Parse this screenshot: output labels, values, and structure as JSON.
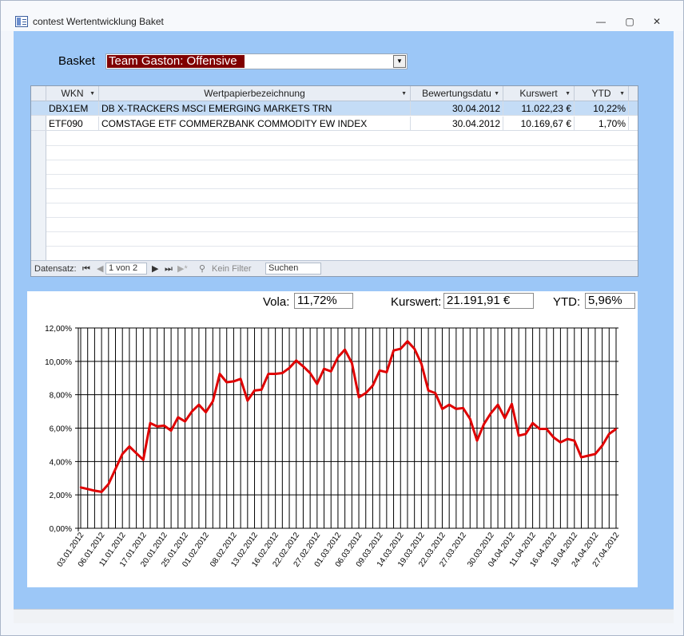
{
  "window": {
    "title": "contest Wertentwicklung Baket",
    "min_glyph": "—",
    "max_glyph": "▢",
    "close_glyph": "✕"
  },
  "basket": {
    "label": "Basket",
    "selected": "Team Gaston: Offensive",
    "dropdown_glyph": "▼"
  },
  "grid": {
    "columns": [
      {
        "label": "WKN"
      },
      {
        "label": "Wertpapierbezeichnung"
      },
      {
        "label": "Bewertungsdatu"
      },
      {
        "label": "Kurswert"
      },
      {
        "label": "YTD"
      }
    ],
    "rows": [
      {
        "wkn": "DBX1EM",
        "name": "DB X-TRACKERS MSCI EMERGING MARKETS TRN",
        "date": "30.04.2012",
        "value": "11.022,23 €",
        "ytd": "10,22%"
      },
      {
        "wkn": "ETF090",
        "name": "COMSTAGE ETF COMMERZBANK COMMODITY EW INDEX",
        "date": "30.04.2012",
        "value": "10.169,67 €",
        "ytd": "1,70%"
      }
    ],
    "nav": {
      "label": "Datensatz:",
      "record": "1 von 2",
      "filter": "Kein Filter",
      "search": "Suchen"
    }
  },
  "stats": {
    "vola_label": "Vola:",
    "vola": "11,72%",
    "kurswert_label": "Kurswert:",
    "kurswert": "21.191,91 €",
    "ytd_label": "YTD:",
    "ytd": "5,96%"
  },
  "colors": {
    "line": "#e00000",
    "form_bg": "#9cc7f7",
    "selection": "#800000"
  },
  "chart_data": {
    "type": "line",
    "title": "",
    "xlabel": "",
    "ylabel": "",
    "ylim": [
      0,
      0.12
    ],
    "y_ticks": [
      "0,00%",
      "2,00%",
      "4,00%",
      "6,00%",
      "8,00%",
      "10,00%",
      "12,00%"
    ],
    "x_tick_labels": [
      "03.01.2012",
      "06.01.2012",
      "11.01.2012",
      "17.01.2012",
      "20.01.2012",
      "25.01.2012",
      "01.02.2012",
      "08.02.2012",
      "13.02.2012",
      "16.02.2012",
      "22.02.2012",
      "27.02.2012",
      "01.03.2012",
      "06.03.2012",
      "09.03.2012",
      "14.03.2012",
      "19.03.2012",
      "22.03.2012",
      "27.03.2012",
      "30.03.2012",
      "04.04.2012",
      "11.04.2012",
      "16.04.2012",
      "19.04.2012",
      "24.04.2012",
      "27.04.2012"
    ],
    "grid": true,
    "legend": "none",
    "series": [
      {
        "values": [
          0.0245,
          0.0235,
          0.0225,
          0.0218,
          0.0265,
          0.0355,
          0.0445,
          0.049,
          0.045,
          0.041,
          0.063,
          0.061,
          0.0615,
          0.0585,
          0.0665,
          0.064,
          0.07,
          0.074,
          0.0695,
          0.076,
          0.0925,
          0.0875,
          0.088,
          0.0895,
          0.0765,
          0.0825,
          0.083,
          0.0925,
          0.0925,
          0.093,
          0.096,
          0.1005,
          0.097,
          0.093,
          0.0865,
          0.0955,
          0.094,
          0.1025,
          0.107,
          0.099,
          0.0785,
          0.081,
          0.0855,
          0.0945,
          0.0935,
          0.1065,
          0.1075,
          0.112,
          0.1075,
          0.0985,
          0.0825,
          0.081,
          0.0715,
          0.074,
          0.0715,
          0.072,
          0.0655,
          0.0525,
          0.0625,
          0.069,
          0.074,
          0.066,
          0.0745,
          0.0555,
          0.0565,
          0.063,
          0.0595,
          0.0595,
          0.0545,
          0.0515,
          0.0535,
          0.0525,
          0.0425,
          0.0435,
          0.0445,
          0.0495,
          0.0565,
          0.0595
        ]
      }
    ]
  }
}
